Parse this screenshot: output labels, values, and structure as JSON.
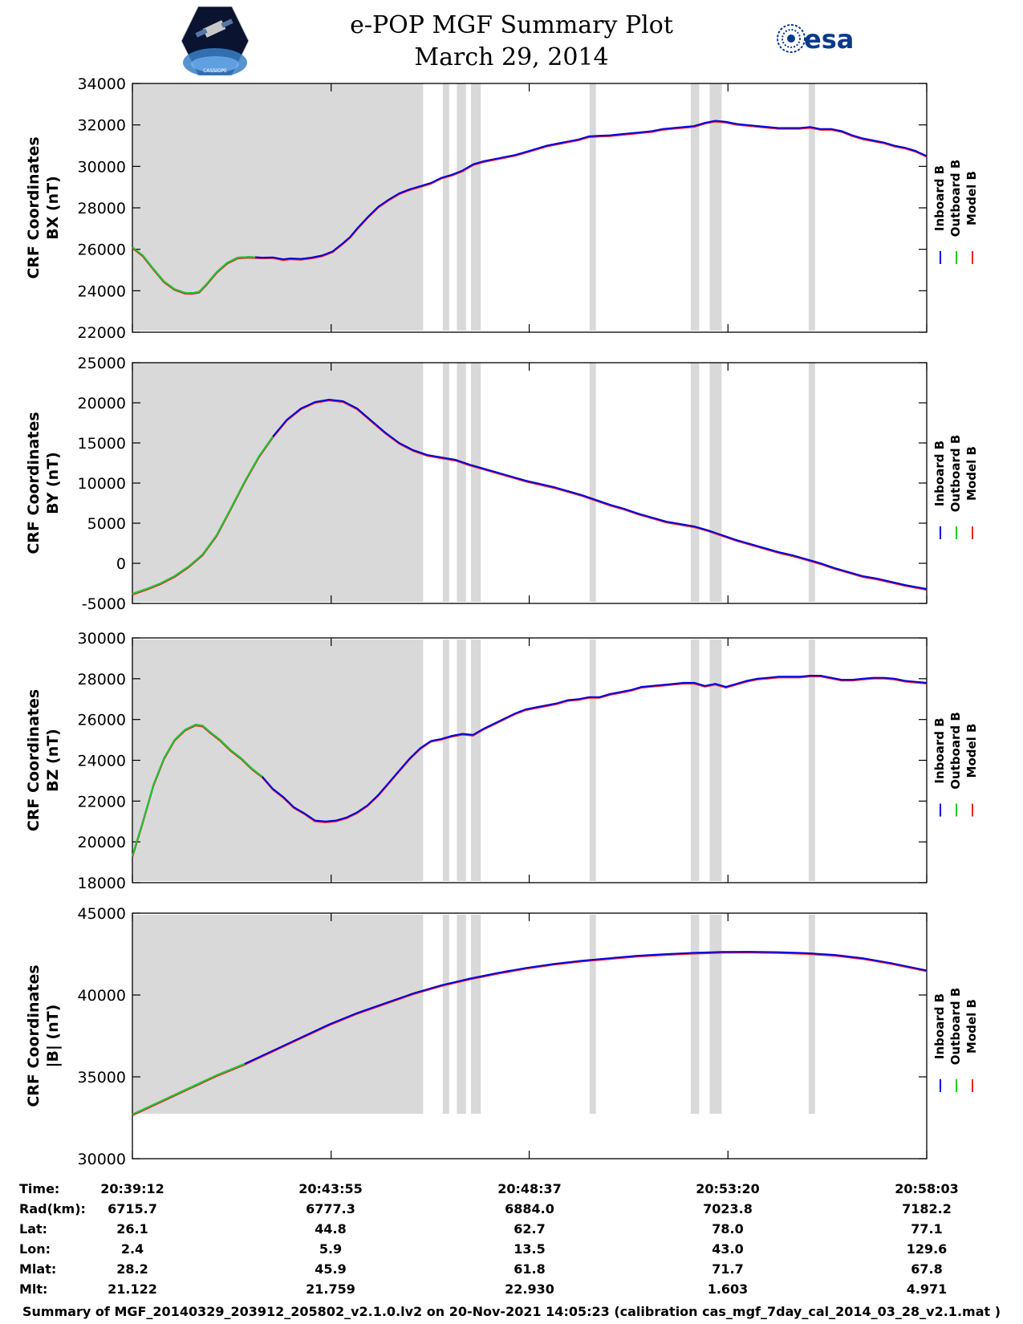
{
  "header": {
    "title_line1": "e-POP MGF Summary Plot",
    "title_line2": "March 29, 2014",
    "logo_left_text": "CASSIOPE",
    "logo_right_text": "esa"
  },
  "colors": {
    "inboard": "#0000dd",
    "outboard": "#22cc22",
    "model": "#ee2222",
    "shade": "#d9d9d9"
  },
  "legend": [
    "Inboard B",
    "Outboard B",
    "Model B"
  ],
  "chart_data": [
    {
      "type": "line",
      "id": "bx",
      "ylabel_line1": "CRF Coordinates",
      "ylabel_line2": "BX (nT)",
      "ylim": [
        22000,
        34000
      ],
      "yticks": [
        22000,
        24000,
        26000,
        28000,
        30000,
        32000,
        34000
      ],
      "ytick_labels": [
        "22000",
        "24000",
        "26000",
        "28000",
        "30000",
        "32000",
        "34000"
      ],
      "xlim": [
        0,
        1131
      ],
      "xticks": [
        0,
        283,
        565,
        848,
        1131
      ],
      "outboard_end": 180,
      "series": {
        "x": [
          0,
          15,
          30,
          45,
          60,
          75,
          85,
          95,
          105,
          120,
          135,
          150,
          165,
          175,
          185,
          200,
          215,
          225,
          240,
          255,
          270,
          285,
          300,
          310,
          320,
          335,
          350,
          365,
          380,
          395,
          410,
          425,
          440,
          455,
          470,
          485,
          500,
          515,
          530,
          545,
          560,
          575,
          590,
          605,
          620,
          635,
          650,
          665,
          680,
          695,
          710,
          725,
          740,
          755,
          770,
          785,
          800,
          815,
          830,
          845,
          860,
          875,
          890,
          905,
          920,
          935,
          950,
          965,
          980,
          995,
          1010,
          1025,
          1040,
          1055,
          1070,
          1085,
          1100,
          1115,
          1131
        ],
        "y": [
          26100,
          25700,
          25050,
          24450,
          24080,
          23900,
          23890,
          23950,
          24300,
          24900,
          25350,
          25600,
          25630,
          25620,
          25600,
          25610,
          25520,
          25560,
          25540,
          25600,
          25700,
          25900,
          26300,
          26600,
          27000,
          27550,
          28050,
          28400,
          28700,
          28900,
          29050,
          29200,
          29450,
          29600,
          29800,
          30100,
          30250,
          30350,
          30450,
          30550,
          30700,
          30850,
          31000,
          31100,
          31200,
          31300,
          31450,
          31480,
          31500,
          31550,
          31600,
          31650,
          31700,
          31800,
          31850,
          31900,
          31950,
          32100,
          32200,
          32150,
          32050,
          32000,
          31950,
          31900,
          31850,
          31850,
          31850,
          31900,
          31800,
          31800,
          31700,
          31500,
          31350,
          31250,
          31150,
          31000,
          30900,
          30750,
          30500
        ]
      }
    },
    {
      "type": "line",
      "id": "by",
      "ylabel_line1": "CRF Coordinates",
      "ylabel_line2": "BY (nT)",
      "ylim": [
        -5000,
        25000
      ],
      "yticks": [
        -5000,
        0,
        5000,
        10000,
        15000,
        20000,
        25000
      ],
      "ytick_labels": [
        "-5000",
        "0",
        "5000",
        "10000",
        "15000",
        "20000",
        "25000"
      ],
      "xlim": [
        0,
        1131
      ],
      "xticks": [
        0,
        283,
        565,
        848,
        1131
      ],
      "outboard_end": 205,
      "series": {
        "x": [
          0,
          20,
          40,
          60,
          80,
          100,
          120,
          140,
          160,
          180,
          200,
          220,
          240,
          260,
          280,
          300,
          320,
          340,
          360,
          380,
          400,
          420,
          440,
          460,
          480,
          500,
          520,
          540,
          560,
          580,
          600,
          620,
          640,
          660,
          680,
          700,
          720,
          740,
          760,
          780,
          800,
          820,
          840,
          860,
          880,
          900,
          920,
          940,
          960,
          980,
          1000,
          1020,
          1040,
          1060,
          1080,
          1100,
          1131
        ],
        "y": [
          -3800,
          -3200,
          -2500,
          -1600,
          -400,
          1100,
          3500,
          6800,
          10200,
          13300,
          15800,
          17900,
          19300,
          20100,
          20400,
          20200,
          19300,
          17800,
          16300,
          15000,
          14100,
          13500,
          13200,
          12900,
          12300,
          11800,
          11300,
          10800,
          10300,
          9900,
          9500,
          9000,
          8500,
          7900,
          7300,
          6800,
          6200,
          5700,
          5200,
          4900,
          4600,
          4100,
          3500,
          2900,
          2400,
          1900,
          1400,
          1000,
          500,
          0,
          -600,
          -1100,
          -1600,
          -1900,
          -2300,
          -2700,
          -3200
        ]
      }
    },
    {
      "type": "line",
      "id": "bz",
      "ylabel_line1": "CRF Coordinates",
      "ylabel_line2": "BZ (nT)",
      "ylim": [
        18000,
        30000
      ],
      "yticks": [
        18000,
        20000,
        22000,
        24000,
        26000,
        28000,
        30000
      ],
      "ytick_labels": [
        "18000",
        "20000",
        "22000",
        "24000",
        "26000",
        "28000",
        "30000"
      ],
      "xlim": [
        0,
        1131
      ],
      "xticks": [
        0,
        283,
        565,
        848,
        1131
      ],
      "outboard_end": 185,
      "series": {
        "x": [
          0,
          15,
          30,
          45,
          60,
          75,
          90,
          100,
          110,
          125,
          140,
          155,
          170,
          185,
          200,
          215,
          230,
          245,
          260,
          275,
          290,
          305,
          320,
          335,
          350,
          365,
          380,
          395,
          410,
          425,
          440,
          455,
          470,
          485,
          500,
          515,
          530,
          545,
          560,
          575,
          590,
          605,
          620,
          635,
          650,
          665,
          680,
          695,
          710,
          725,
          740,
          755,
          770,
          785,
          800,
          815,
          830,
          845,
          860,
          875,
          890,
          905,
          920,
          935,
          950,
          965,
          980,
          995,
          1010,
          1025,
          1040,
          1055,
          1070,
          1085,
          1100,
          1115,
          1131
        ],
        "y": [
          19300,
          21000,
          22800,
          24100,
          25000,
          25500,
          25750,
          25700,
          25400,
          25000,
          24500,
          24100,
          23600,
          23200,
          22600,
          22200,
          21700,
          21400,
          21050,
          21000,
          21050,
          21200,
          21450,
          21800,
          22300,
          22900,
          23500,
          24100,
          24600,
          24950,
          25050,
          25200,
          25300,
          25250,
          25550,
          25800,
          26050,
          26300,
          26500,
          26600,
          26700,
          26800,
          26950,
          27000,
          27100,
          27100,
          27250,
          27350,
          27450,
          27600,
          27650,
          27700,
          27750,
          27800,
          27800,
          27650,
          27750,
          27600,
          27750,
          27900,
          28000,
          28050,
          28100,
          28100,
          28100,
          28150,
          28150,
          28050,
          27950,
          27950,
          28000,
          28050,
          28050,
          28000,
          27900,
          27850,
          27800
        ]
      }
    },
    {
      "type": "line",
      "id": "bmag",
      "ylabel_line1": "CRF Coordinates",
      "ylabel_line2": "|B| (nT)",
      "ylim": [
        30000,
        45000
      ],
      "yticks": [
        30000,
        35000,
        40000,
        45000
      ],
      "ytick_labels": [
        "30000",
        "35000",
        "40000",
        "45000"
      ],
      "xlim": [
        0,
        1131
      ],
      "xticks": [
        0,
        283,
        565,
        848,
        1131
      ],
      "outboard_end": 170,
      "series": {
        "x": [
          0,
          40,
          80,
          120,
          160,
          200,
          240,
          280,
          320,
          360,
          400,
          440,
          480,
          520,
          560,
          600,
          640,
          680,
          720,
          760,
          800,
          840,
          880,
          920,
          960,
          1000,
          1040,
          1080,
          1131
        ],
        "y": [
          32700,
          33500,
          34300,
          35100,
          35800,
          36600,
          37400,
          38200,
          38900,
          39500,
          40100,
          40600,
          41000,
          41350,
          41650,
          41900,
          42100,
          42250,
          42400,
          42500,
          42580,
          42630,
          42640,
          42620,
          42560,
          42450,
          42250,
          41950,
          41500
        ]
      }
    }
  ],
  "shaded_regions": [
    [
      0,
      414
    ],
    [
      442,
      451
    ],
    [
      462,
      475
    ],
    [
      482,
      496
    ],
    [
      651,
      660
    ],
    [
      795,
      807
    ],
    [
      822,
      839
    ],
    [
      963,
      972
    ]
  ],
  "x_axis_table": {
    "row_labels": [
      "Time:",
      "Rad(km):",
      "Lat:",
      "Lon:",
      "Mlat:",
      "Mlt:"
    ],
    "columns": [
      [
        "20:39:12",
        "6715.7",
        "26.1",
        "2.4",
        "28.2",
        "21.122"
      ],
      [
        "20:43:55",
        "6777.3",
        "44.8",
        "5.9",
        "45.9",
        "21.759"
      ],
      [
        "20:48:37",
        "6884.0",
        "62.7",
        "13.5",
        "61.8",
        "22.930"
      ],
      [
        "20:53:20",
        "7023.8",
        "78.0",
        "43.0",
        "71.7",
        "1.603"
      ],
      [
        "20:58:03",
        "7182.2",
        "77.1",
        "129.6",
        "67.8",
        "4.971"
      ]
    ]
  },
  "footer": "Summary of MGF_20140329_203912_205802_v2.1.0.lv2 on 20-Nov-2021 14:05:23 (calibration cas_mgf_7day_cal_2014_03_28_v2.1.mat )"
}
